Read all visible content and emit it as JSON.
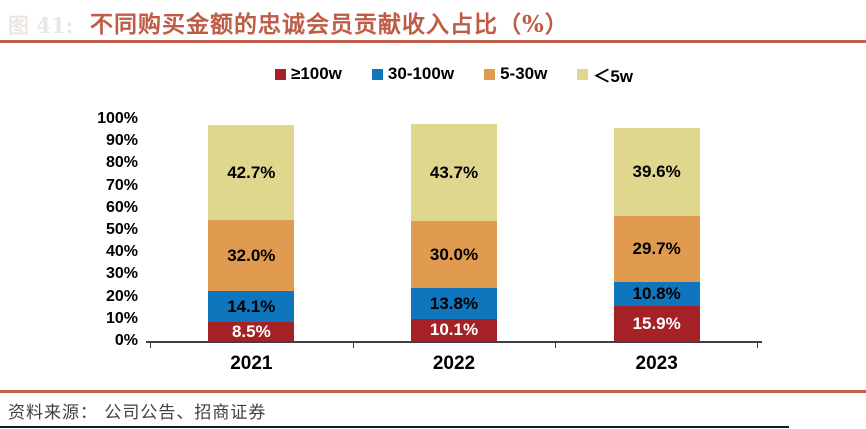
{
  "figure_label": "图 41:",
  "header": {
    "title": "不同购买金额的忠诚会员贡献收入占比（%）"
  },
  "footer": {
    "source": "资料来源： 公司公告、招商证券"
  },
  "colors": {
    "title_text": "#c05c45",
    "accent_rule": "#c0604c",
    "axis": "#404040",
    "bottom_border": "#1a1a1a"
  },
  "chart_data": {
    "type": "bar",
    "stacked": true,
    "title": "不同购买金额的忠诚会员贡献收入占比（%）",
    "categories": [
      "2021",
      "2022",
      "2023"
    ],
    "series": [
      {
        "name": "≥100w",
        "color": "#a62126",
        "label_color": "#ffffff",
        "values": [
          8.5,
          10.1,
          15.9
        ]
      },
      {
        "name": "30-100w",
        "color": "#0f75bd",
        "label_color": "#000000",
        "values": [
          14.1,
          13.8,
          10.8
        ]
      },
      {
        "name": "5-30w",
        "color": "#e09b51",
        "label_color": "#000000",
        "values": [
          32.0,
          30.0,
          29.7
        ]
      },
      {
        "name": "＜5w",
        "color": "#dfd78e",
        "label_color": "#000000",
        "values": [
          42.7,
          43.7,
          39.6
        ]
      }
    ],
    "value_label_suffix": "%",
    "y_ticks": [
      {
        "value": 0,
        "label": "0%"
      },
      {
        "value": 10,
        "label": "10%"
      },
      {
        "value": 20,
        "label": "20%"
      },
      {
        "value": 30,
        "label": "30%"
      },
      {
        "value": 40,
        "label": "40%"
      },
      {
        "value": 50,
        "label": "50%"
      },
      {
        "value": 60,
        "label": "60%"
      },
      {
        "value": 70,
        "label": "70%"
      },
      {
        "value": 80,
        "label": "80%"
      },
      {
        "value": 90,
        "label": "90%"
      },
      {
        "value": 100,
        "label": "100%"
      }
    ],
    "ylim": [
      0,
      100
    ],
    "xlabel": "",
    "ylabel": "",
    "legend_position": "top",
    "grid": false
  }
}
